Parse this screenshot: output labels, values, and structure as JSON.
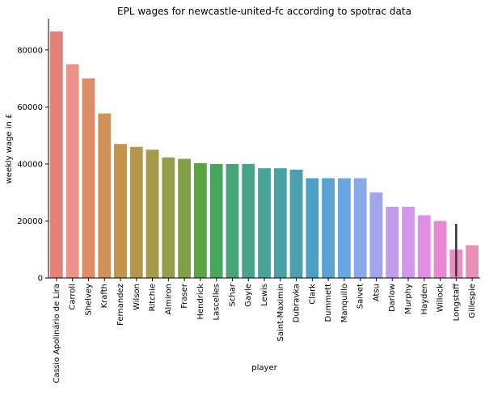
{
  "chart_data": {
    "type": "bar",
    "title": "EPL wages for newcastle-united-fc according to spotrac data",
    "xlabel": "player",
    "ylabel": "weekly wage in £",
    "ylim": [
      0,
      91000
    ],
    "yticks": [
      0,
      20000,
      40000,
      60000,
      80000
    ],
    "grid": false,
    "legend": "none",
    "categories": [
      "Cassio Apolinário de Lira",
      "Carroll",
      "Shelvey",
      "Krafth",
      "Fernandez",
      "Wilson",
      "Ritchie",
      "Almiron",
      "Fraser",
      "Hendrick",
      "Lascelles",
      "Schar",
      "Gayle",
      "Lewis",
      "Saint-Maximin",
      "Dubravka",
      "Clark",
      "Dummett",
      "Manquillo",
      "Saivet",
      "Atsu",
      "Darlow",
      "Murphy",
      "Hayden",
      "Willock",
      "Longstaff",
      "Gillespie"
    ],
    "values": [
      86500,
      75000,
      70000,
      57700,
      47000,
      46000,
      45000,
      42300,
      41800,
      40300,
      40000,
      40000,
      40000,
      38500,
      38500,
      38000,
      35000,
      35000,
      35000,
      35000,
      30000,
      25000,
      25000,
      22000,
      20000,
      10000,
      11500
    ],
    "error_bars": [
      {
        "category": "Longstaff",
        "low": 500,
        "high": 19000
      }
    ],
    "colors": [
      "#e6807a",
      "#ed9288",
      "#dd8c66",
      "#d0915a",
      "#c5944c",
      "#b6974a",
      "#a59b48",
      "#949d48",
      "#809f47",
      "#5aa447",
      "#49a55c",
      "#47a478",
      "#47a389",
      "#48a398",
      "#48a2a4",
      "#49a1b0",
      "#4ba0c3",
      "#5aa2d4",
      "#6aa7e1",
      "#8aa7ea",
      "#a1a5ec",
      "#c09ceb",
      "#d297ec",
      "#e28ee4",
      "#ea87d3",
      "#e98dc3",
      "#e891b5"
    ],
    "error_color": "#3b3b3b"
  }
}
